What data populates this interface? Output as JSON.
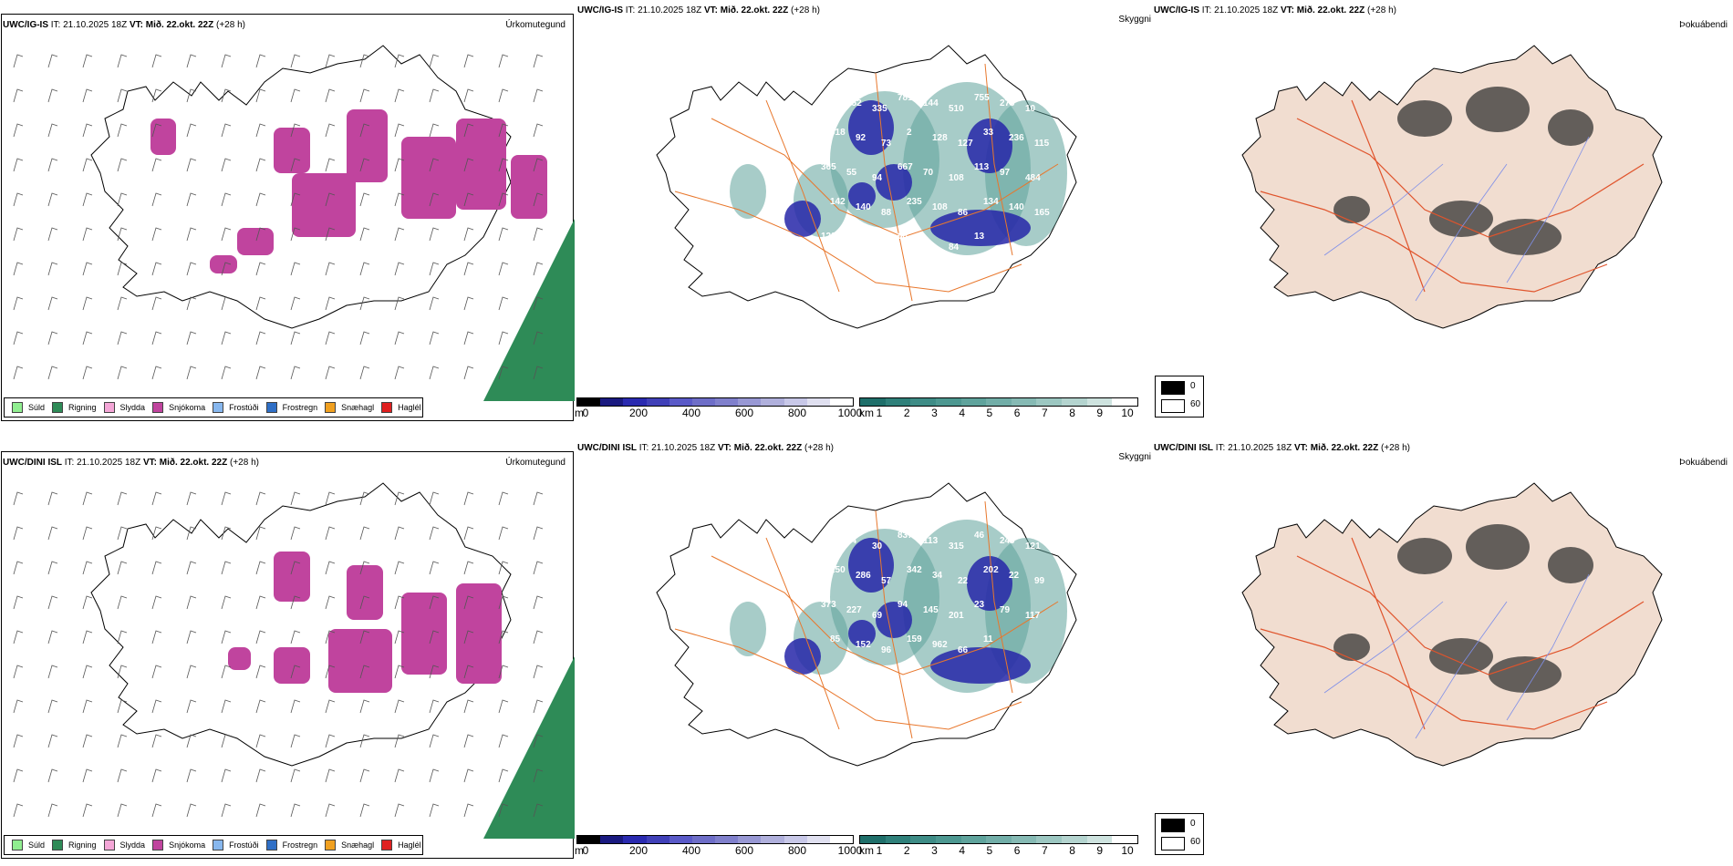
{
  "rows": [
    {
      "id": "ig",
      "p1": {
        "title_model": "UWC/IG-IS",
        "title_it": "IT: 21.10.2025 18Z",
        "title_vt": "VT: Mið. 22.okt. 22Z",
        "title_lead": "(+28 h)",
        "right_label": "Úrkomutegund"
      },
      "p2": {
        "title_model": "UWC/IG-IS",
        "title_it": "IT: 21.10.2025 18Z",
        "title_vt": "VT: Mið. 22.okt. 22Z",
        "title_lead": "(+28 h)",
        "right_label": "Skyggni"
      },
      "p3": {
        "title_model": "UWC/IG-IS",
        "title_it": "IT: 21.10.2025 18Z",
        "title_vt": "VT: Mið. 22.okt. 22Z",
        "title_lead": "(+28 h)",
        "right_label": "Þokuábendi"
      },
      "ceiling_labels": [
        "308",
        "852",
        "335",
        "781",
        "144",
        "510",
        "755",
        "270",
        "10",
        "618",
        "92",
        "73",
        "2",
        "128",
        "127",
        "33",
        "236",
        "115",
        "365",
        "55",
        "94",
        "667",
        "70",
        "108",
        "113",
        "97",
        "484",
        "142",
        "140",
        "88",
        "235",
        "108",
        "86",
        "134",
        "140",
        "165",
        "129",
        "115",
        "85",
        "68",
        "6",
        "84",
        "13"
      ],
      "snow_cells": [
        [
          165,
          100,
          28,
          40
        ],
        [
          300,
          110,
          40,
          50
        ],
        [
          380,
          90,
          45,
          80
        ],
        [
          440,
          120,
          60,
          90
        ],
        [
          500,
          100,
          55,
          100
        ],
        [
          560,
          140,
          40,
          70
        ],
        [
          320,
          160,
          70,
          70
        ],
        [
          260,
          220,
          40,
          30
        ],
        [
          230,
          250,
          30,
          20
        ]
      ]
    },
    {
      "id": "dini",
      "p1": {
        "title_model": "UWC/DINI ISL",
        "title_it": "IT: 21.10.2025 18Z",
        "title_vt": "VT: Mið. 22.okt. 22Z",
        "title_lead": "(+28 h)",
        "right_label": "Úrkomutegund"
      },
      "p2": {
        "title_model": "UWC/DINI ISL",
        "title_it": "IT: 21.10.2025 18Z",
        "title_vt": "VT: Mið. 22.okt. 22Z",
        "title_lead": "(+28 h)",
        "right_label": "Skyggni"
      },
      "p3": {
        "title_model": "UWC/DINI ISL",
        "title_it": "IT: 21.10.2025 18Z",
        "title_vt": "VT: Mið. 22.okt. 22Z",
        "title_lead": "(+28 h)",
        "right_label": "Þokuábendi"
      },
      "ceiling_labels": [
        "107",
        "94",
        "30",
        "837",
        "113",
        "315",
        "46",
        "240",
        "121",
        "150",
        "286",
        "57",
        "342",
        "34",
        "22",
        "202",
        "22",
        "99",
        "373",
        "227",
        "69",
        "94",
        "145",
        "201",
        "23",
        "79",
        "117",
        "85",
        "152",
        "96",
        "159",
        "962",
        "66",
        "11"
      ],
      "snow_cells": [
        [
          300,
          95,
          40,
          55
        ],
        [
          380,
          110,
          40,
          60
        ],
        [
          440,
          140,
          50,
          90
        ],
        [
          500,
          130,
          50,
          110
        ],
        [
          360,
          180,
          70,
          70
        ],
        [
          300,
          200,
          40,
          40
        ],
        [
          250,
          200,
          25,
          25
        ]
      ]
    }
  ],
  "precip_legend": [
    {
      "label": "Súld",
      "color": "#90ee90"
    },
    {
      "label": "Rigning",
      "color": "#2e8b57"
    },
    {
      "label": "Slydda",
      "color": "#f4a6d7"
    },
    {
      "label": "Snjókoma",
      "color": "#c0449e"
    },
    {
      "label": "Frostúði",
      "color": "#87b7ee"
    },
    {
      "label": "Frostregn",
      "color": "#2f6fc6"
    },
    {
      "label": "Snæhagl",
      "color": "#f0a020"
    },
    {
      "label": "Haglél",
      "color": "#e02020"
    }
  ],
  "ceiling_bar": {
    "unit": "m",
    "ticks": [
      "0",
      "200",
      "400",
      "600",
      "800",
      "1000"
    ],
    "colors": [
      "#000000",
      "#1a1a80",
      "#2a2ab0",
      "#4040b8",
      "#5a5ac8",
      "#6e6ec8",
      "#8080cc",
      "#9898d4",
      "#b0b0dc",
      "#c8c8e8",
      "#e0e0f0",
      "#ffffff"
    ]
  },
  "vis_bar": {
    "unit": "km",
    "ticks": [
      "1",
      "2",
      "3",
      "4",
      "5",
      "6",
      "7",
      "8",
      "9",
      "10"
    ],
    "colors": [
      "#1f6f6a",
      "#2f807a",
      "#3e8c86",
      "#4d9891",
      "#5fa39c",
      "#72aea8",
      "#86bab4",
      "#9cc7c1",
      "#b4d4cf",
      "#cee3df",
      "#ffffff"
    ]
  },
  "fog_legend": [
    {
      "label": "0",
      "color": "#000000"
    },
    {
      "label": "60",
      "color": "#ffffff"
    }
  ],
  "colors": {
    "land_fog": "#f1ddd0",
    "road_orange": "#e8772c",
    "road_red": "#e0542c",
    "river": "#7f8fe8",
    "sea_rain": "#2e8b57",
    "snow": "#c0449e",
    "ceiling_blue": "#2626a8",
    "vis_teal": "#5ea29a"
  }
}
